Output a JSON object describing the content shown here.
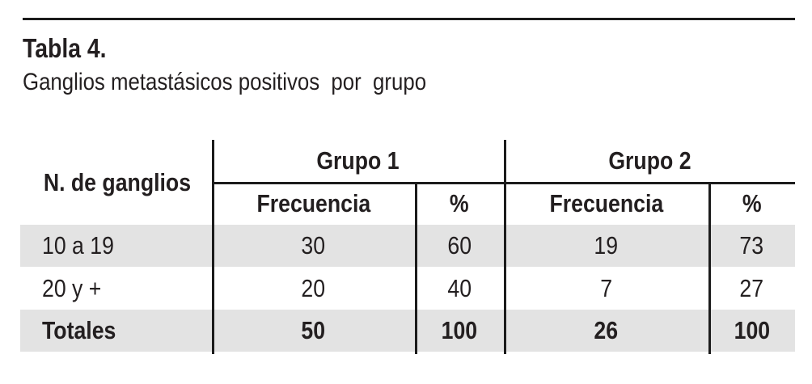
{
  "page": {
    "title": "Tabla 4.",
    "subtitle": "Ganglios metastásicos positivos  por  grupo"
  },
  "table": {
    "row_header_label": "N. de ganglios",
    "groups": [
      {
        "label": "Grupo 1",
        "columns": [
          "Frecuencia",
          "%"
        ]
      },
      {
        "label": "Grupo 2",
        "columns": [
          "Frecuencia",
          "%"
        ]
      }
    ],
    "rows": [
      {
        "label": "10 a 19",
        "values": [
          "30",
          "60",
          "19",
          "73"
        ],
        "shaded": true,
        "bold": false
      },
      {
        "label": "20 y +",
        "values": [
          "20",
          "40",
          "7",
          "27"
        ],
        "shaded": false,
        "bold": false
      },
      {
        "label": "Totales",
        "values": [
          "50",
          "100",
          "26",
          "100"
        ],
        "shaded": true,
        "bold": true
      }
    ]
  },
  "colors": {
    "row_shade": "#e3e3e3",
    "rule": "#1c1c1c",
    "text": "#231f20",
    "background": "#ffffff"
  }
}
